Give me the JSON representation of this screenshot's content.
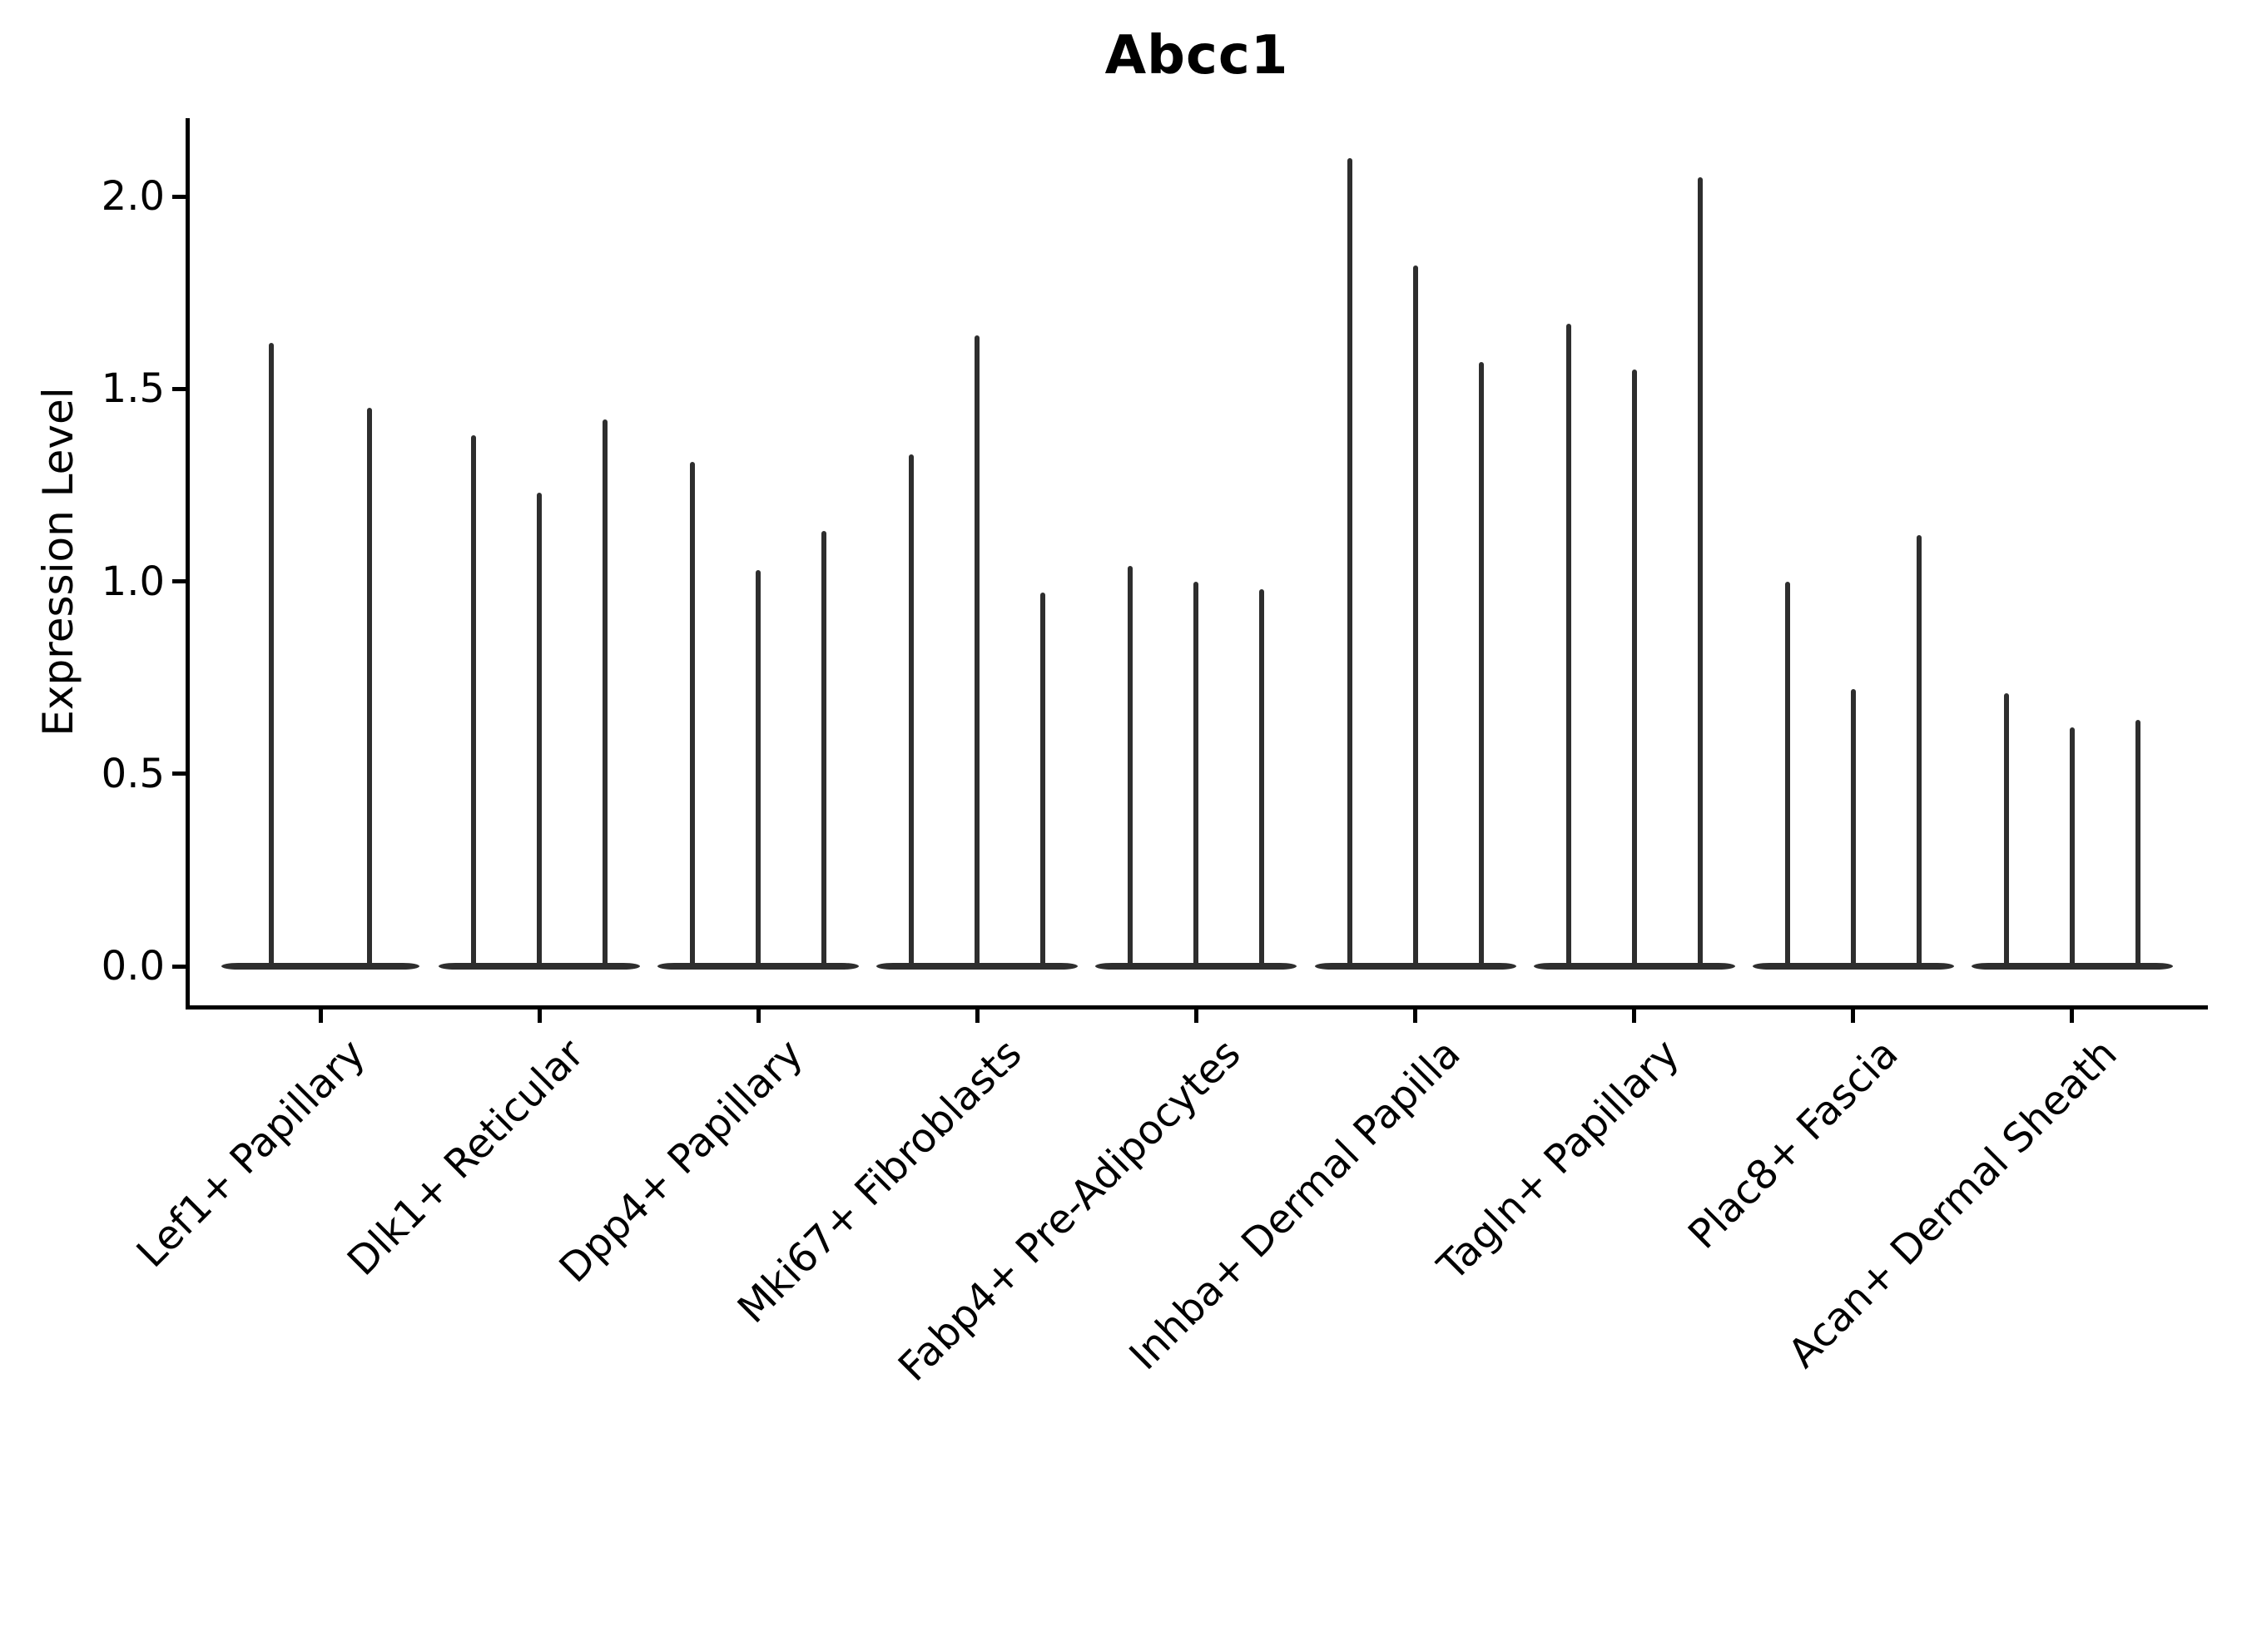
{
  "title": "Abcc1",
  "ylabel": "Expression Level",
  "yticks": [
    "0.0",
    "0.5",
    "1.0",
    "1.5",
    "2.0"
  ],
  "chart_data": {
    "type": "violin",
    "title": "Abcc1",
    "xlabel": "",
    "ylabel": "Expression Level",
    "ylim": [
      -0.11,
      2.2
    ],
    "ytick_values": [
      0.0,
      0.5,
      1.0,
      1.5,
      2.0
    ],
    "grid": false,
    "legend": "none",
    "violin_color": "#2e2e2e",
    "description": "Stacked thin violin plots of Abcc1 expression; each category holds 2-3 violins (replicates) whose mass is concentrated at 0 with a narrow spike up to the listed maximum expression value.",
    "categories": [
      "Lef1+ Papillary",
      "Dlk1+ Reticular",
      "Dpp4+ Papillary",
      "Mki67+ Fibroblasts",
      "Fabp4+ Pre-Adipocytes",
      "Inhba+ Dermal Papilla",
      "Tagln+ Papillary",
      "Plac8+ Fascia",
      "Acan+ Dermal Sheath"
    ],
    "groups": [
      {
        "label": "Lef1+ Papillary",
        "violin_maxima": [
          1.62,
          1.45
        ]
      },
      {
        "label": "Dlk1+ Reticular",
        "violin_maxima": [
          1.38,
          1.23,
          1.42
        ]
      },
      {
        "label": "Dpp4+ Papillary",
        "violin_maxima": [
          1.31,
          1.03,
          1.13
        ]
      },
      {
        "label": "Mki67+ Fibroblasts",
        "violin_maxima": [
          1.33,
          1.64,
          0.97
        ]
      },
      {
        "label": "Fabp4+ Pre-Adipocytes",
        "violin_maxima": [
          1.04,
          1.0,
          0.98
        ]
      },
      {
        "label": "Inhba+ Dermal Papilla",
        "violin_maxima": [
          2.1,
          1.82,
          1.57
        ]
      },
      {
        "label": "Tagln+ Papillary",
        "violin_maxima": [
          1.67,
          1.55,
          2.05
        ]
      },
      {
        "label": "Plac8+ Fascia",
        "violin_maxima": [
          1.0,
          0.72,
          1.12
        ]
      },
      {
        "label": "Acan+ Dermal Sheath",
        "violin_maxima": [
          0.71,
          0.62,
          0.64
        ]
      }
    ]
  }
}
